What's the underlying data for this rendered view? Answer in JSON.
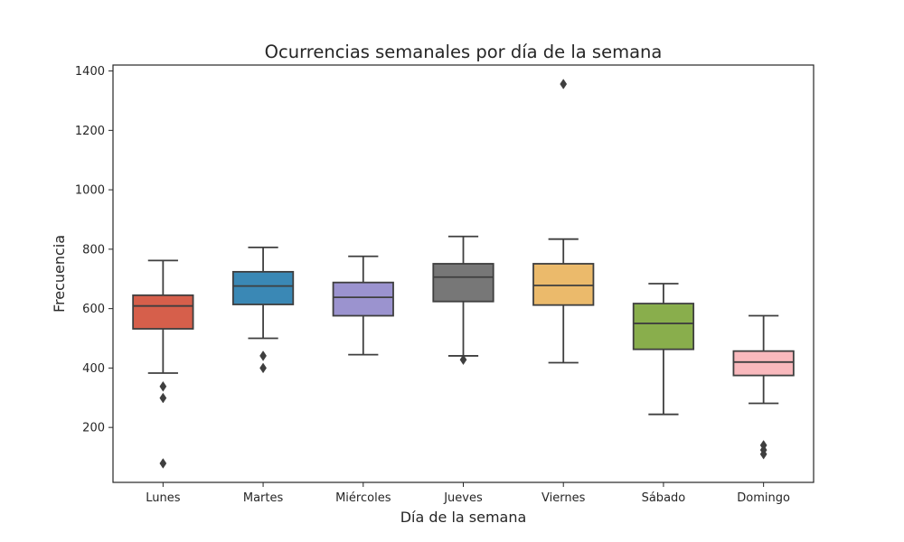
{
  "chart_data": {
    "type": "box",
    "title": "Ocurrencias semanales por día de la semana",
    "xlabel": "Día de la semana",
    "ylabel": "Frecuencia",
    "ylim": [
      15,
      1420
    ],
    "yticks": [
      200,
      400,
      600,
      800,
      1000,
      1200,
      1400
    ],
    "grid": false,
    "categories": [
      "Lunes",
      "Martes",
      "Miércoles",
      "Jueves",
      "Viernes",
      "Sábado",
      "Domingo"
    ],
    "boxes": [
      {
        "category": "Lunes",
        "color": "#d65f4b",
        "whisker_low": 383,
        "q1": 532,
        "median": 609,
        "q3": 645,
        "whisker_high": 762,
        "outliers": [
          338,
          299,
          79
        ]
      },
      {
        "category": "Martes",
        "color": "#3a88b5",
        "whisker_low": 500,
        "q1": 614,
        "median": 676,
        "q3": 724,
        "whisker_high": 806,
        "outliers": [
          441,
          400
        ]
      },
      {
        "category": "Miércoles",
        "color": "#9b93cf",
        "whisker_low": 445,
        "q1": 576,
        "median": 638,
        "q3": 688,
        "whisker_high": 776,
        "outliers": []
      },
      {
        "category": "Jueves",
        "color": "#777777",
        "whisker_low": 441,
        "q1": 624,
        "median": 706,
        "q3": 751,
        "whisker_high": 843,
        "outliers": [
          428
        ]
      },
      {
        "category": "Viernes",
        "color": "#ebba6b",
        "whisker_low": 418,
        "q1": 612,
        "median": 678,
        "q3": 751,
        "whisker_high": 834,
        "outliers": [
          1356
        ]
      },
      {
        "category": "Sábado",
        "color": "#89ae4c",
        "whisker_low": 244,
        "q1": 463,
        "median": 550,
        "q3": 617,
        "whisker_high": 684,
        "outliers": []
      },
      {
        "category": "Domingo",
        "color": "#f9b9bd",
        "whisker_low": 281,
        "q1": 375,
        "median": 420,
        "q3": 457,
        "whisker_high": 576,
        "outliers": [
          140,
          124,
          110
        ]
      }
    ]
  }
}
